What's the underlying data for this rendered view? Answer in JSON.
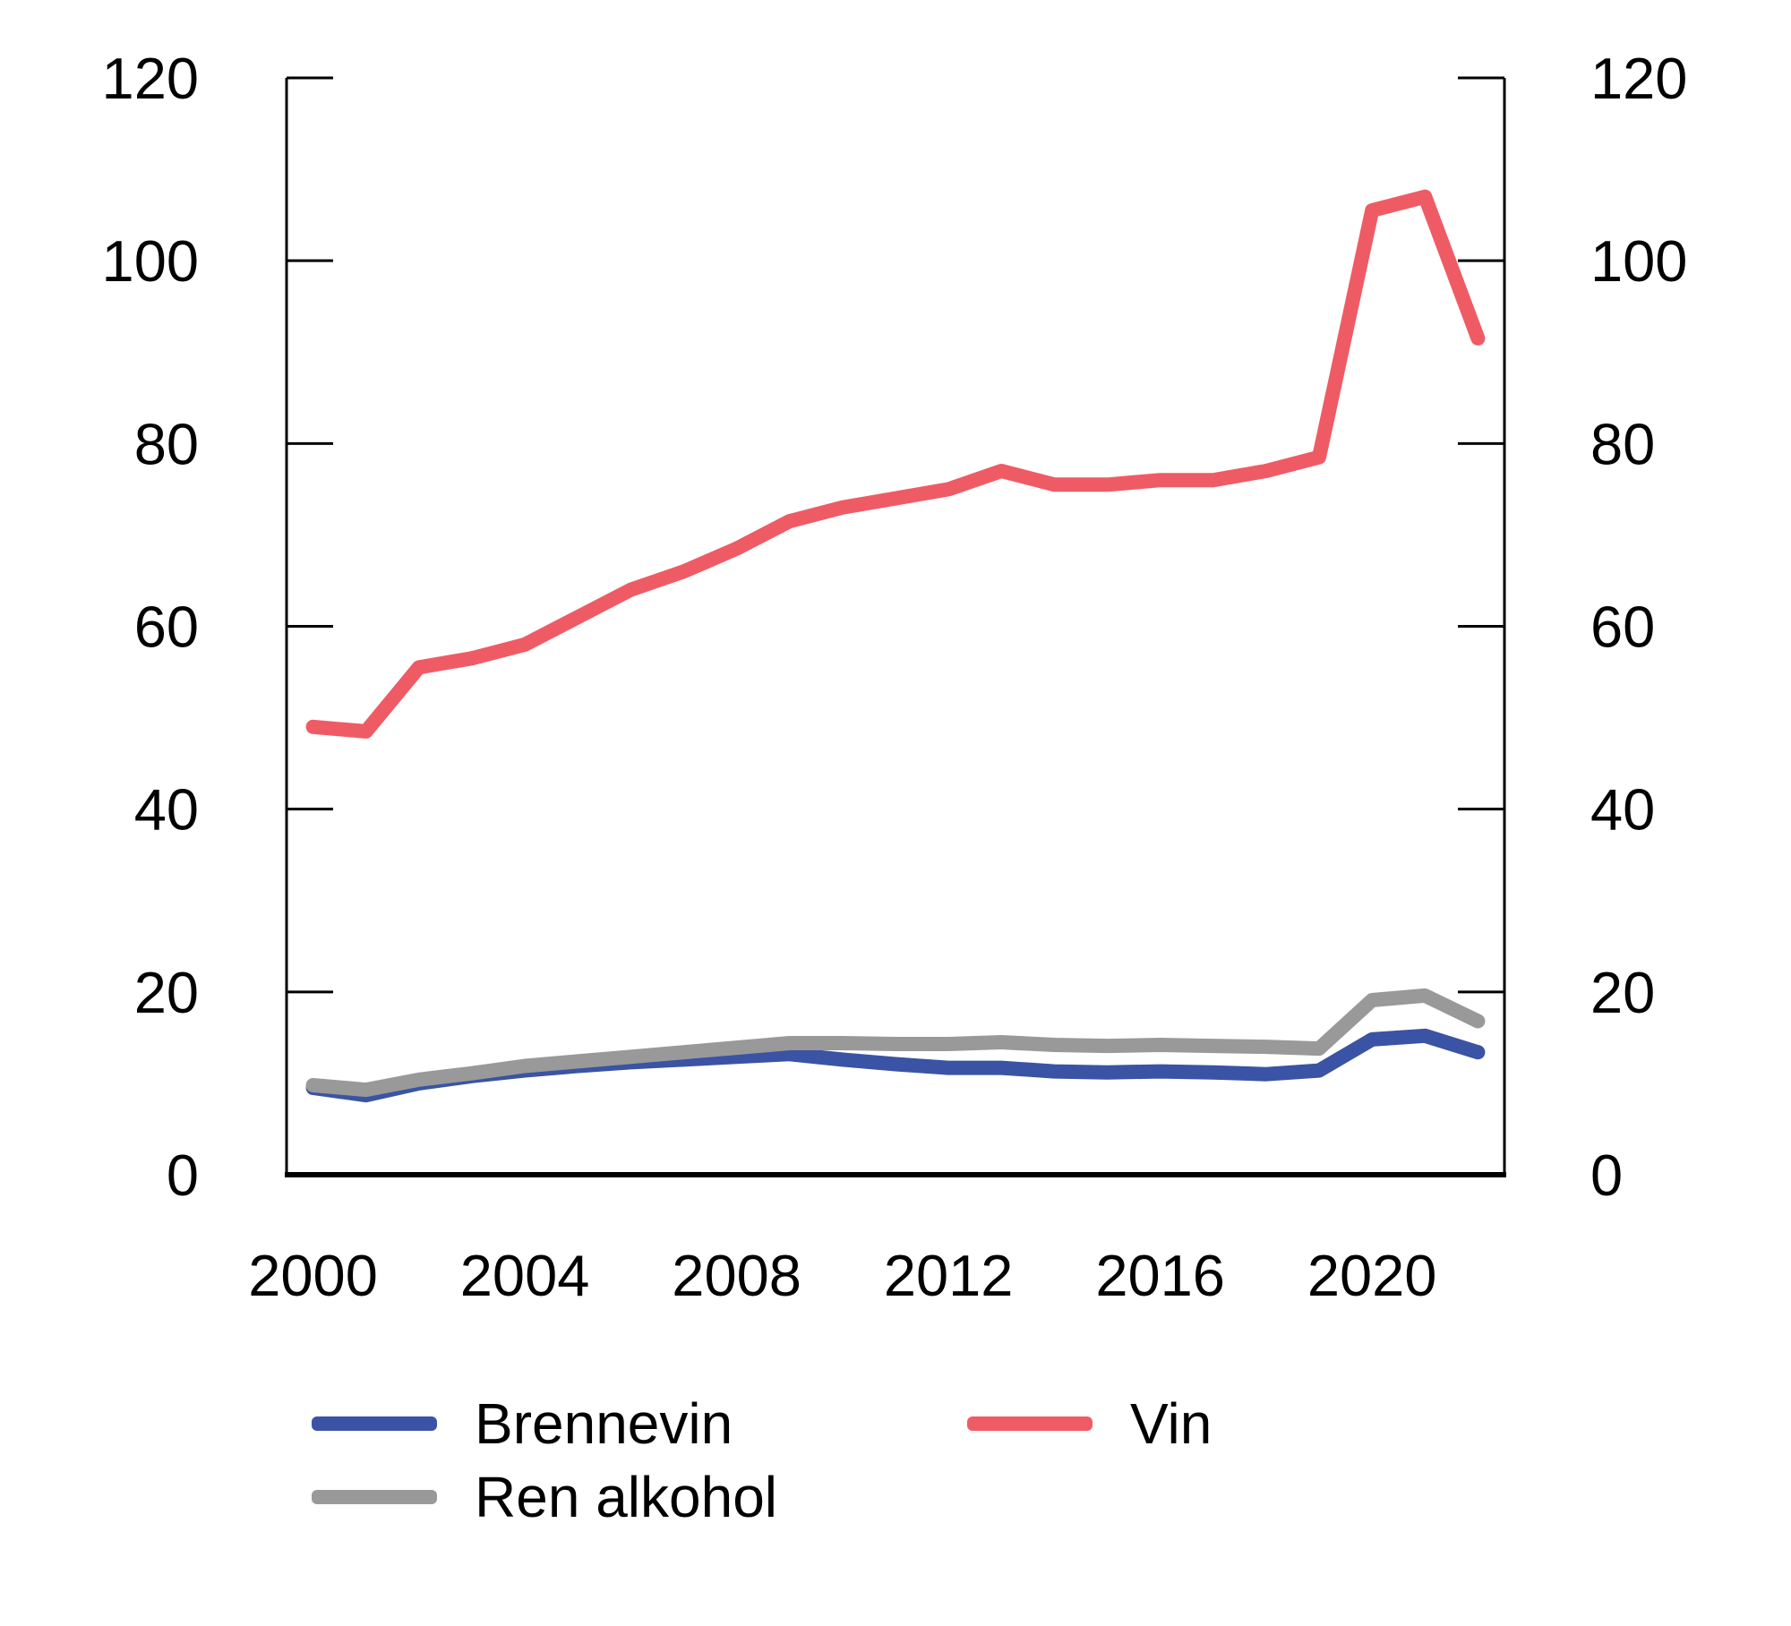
{
  "chart_data": {
    "type": "line",
    "title": "",
    "xlabel": "",
    "ylabel": "",
    "x": [
      2000,
      2001,
      2002,
      2003,
      2004,
      2005,
      2006,
      2007,
      2008,
      2009,
      2010,
      2011,
      2012,
      2013,
      2014,
      2015,
      2016,
      2017,
      2018,
      2019,
      2020,
      2021,
      2022
    ],
    "series": [
      {
        "name": "Brennevin",
        "color": "#3a53a4",
        "values": [
          9.5,
          8.7,
          10.0,
          10.8,
          11.4,
          11.9,
          12.3,
          12.6,
          12.9,
          13.2,
          12.6,
          12.1,
          11.7,
          11.7,
          11.3,
          11.2,
          11.3,
          11.2,
          11.0,
          11.4,
          14.8,
          15.2,
          13.4
        ]
      },
      {
        "name": "Vin",
        "color": "#ef5b65",
        "values": [
          49.0,
          48.5,
          55.5,
          56.5,
          58.0,
          61.0,
          64.0,
          66.0,
          68.5,
          71.5,
          73.0,
          74.0,
          75.0,
          77.0,
          75.5,
          75.5,
          76.0,
          76.0,
          77.0,
          78.5,
          105.5,
          107.0,
          91.5
        ]
      },
      {
        "name": "Ren alkohol",
        "color": "#999999",
        "values": [
          9.8,
          9.3,
          10.4,
          11.1,
          11.9,
          12.4,
          12.9,
          13.4,
          13.9,
          14.4,
          14.4,
          14.3,
          14.3,
          14.5,
          14.2,
          14.1,
          14.2,
          14.1,
          14.0,
          13.8,
          19.1,
          19.6,
          16.8
        ]
      }
    ],
    "xticks": [
      2000,
      2004,
      2008,
      2012,
      2016,
      2020
    ],
    "yticks": [
      0,
      20,
      40,
      60,
      80,
      100,
      120
    ],
    "xlim": [
      1999.5,
      2022.5
    ],
    "ylim": [
      0,
      120
    ],
    "grid": false,
    "y_axis_sides": "both-mirrored",
    "legend_position": "bottom",
    "axis_color": "#000000"
  },
  "legend": {
    "items": [
      {
        "label": "Brennevin",
        "color": "#3a53a4"
      },
      {
        "label": "Vin",
        "color": "#ef5b65"
      },
      {
        "label": "Ren alkohol",
        "color": "#999999"
      }
    ]
  }
}
